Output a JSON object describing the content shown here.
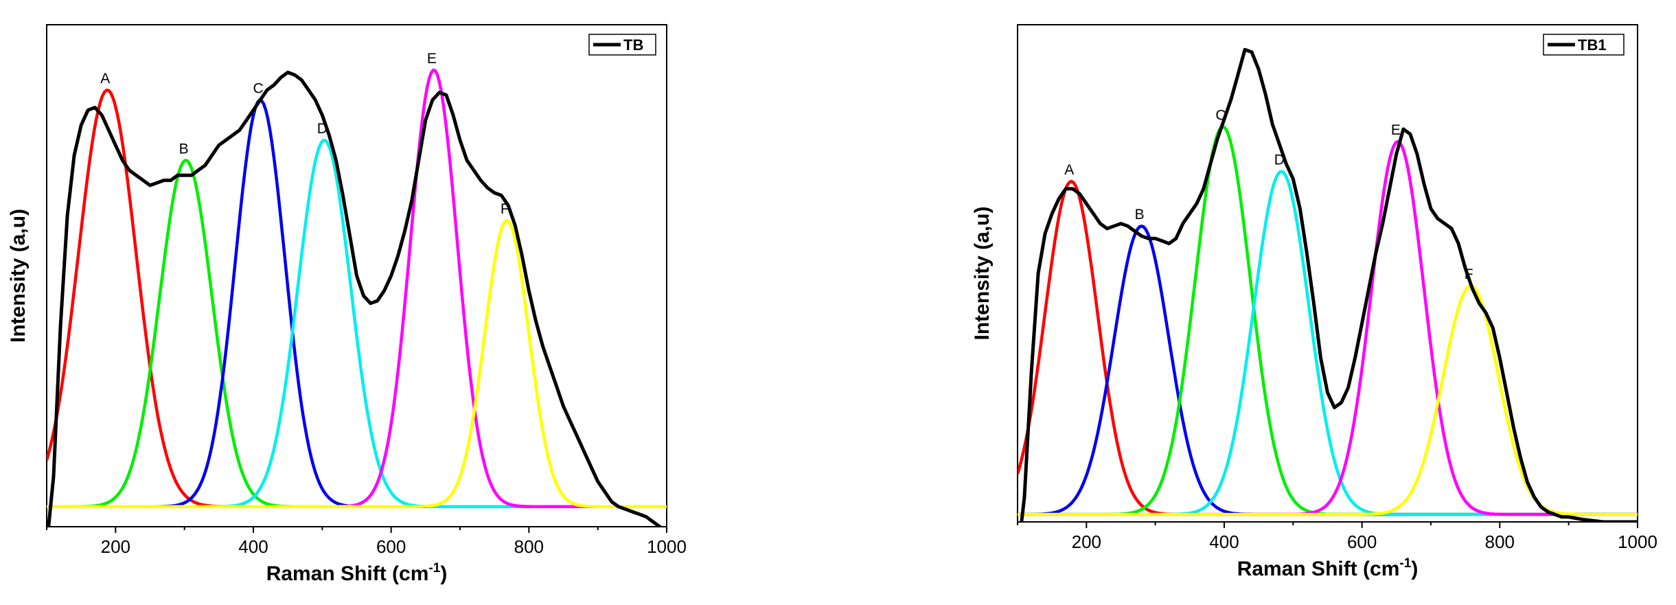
{
  "chart_data": [
    {
      "type": "line",
      "legend_label": "TB",
      "legend_position": "top-right",
      "xlabel": "Raman Shift (cm",
      "xlabel_sup": "-1",
      "xlabel_close": ")",
      "ylabel": "Intensity (a,u)",
      "xlim": [
        100,
        1000
      ],
      "ylim": [
        0,
        1.0
      ],
      "x_ticks": [
        200,
        400,
        600,
        800,
        1000
      ],
      "grid": false,
      "measured": {
        "name": "TB",
        "color": "#000000",
        "points": [
          [
            102,
            -0.01
          ],
          [
            110,
            0.1
          ],
          [
            120,
            0.4
          ],
          [
            130,
            0.62
          ],
          [
            140,
            0.74
          ],
          [
            150,
            0.8
          ],
          [
            160,
            0.83
          ],
          [
            170,
            0.835
          ],
          [
            180,
            0.82
          ],
          [
            190,
            0.79
          ],
          [
            200,
            0.76
          ],
          [
            210,
            0.73
          ],
          [
            220,
            0.71
          ],
          [
            230,
            0.7
          ],
          [
            240,
            0.69
          ],
          [
            250,
            0.68
          ],
          [
            260,
            0.685
          ],
          [
            270,
            0.69
          ],
          [
            280,
            0.69
          ],
          [
            290,
            0.7
          ],
          [
            300,
            0.7
          ],
          [
            310,
            0.7
          ],
          [
            320,
            0.71
          ],
          [
            330,
            0.72
          ],
          [
            340,
            0.74
          ],
          [
            350,
            0.76
          ],
          [
            360,
            0.77
          ],
          [
            370,
            0.78
          ],
          [
            380,
            0.79
          ],
          [
            390,
            0.81
          ],
          [
            400,
            0.83
          ],
          [
            410,
            0.85
          ],
          [
            420,
            0.87
          ],
          [
            430,
            0.88
          ],
          [
            440,
            0.895
          ],
          [
            450,
            0.905
          ],
          [
            460,
            0.9
          ],
          [
            470,
            0.89
          ],
          [
            480,
            0.87
          ],
          [
            490,
            0.85
          ],
          [
            500,
            0.82
          ],
          [
            510,
            0.78
          ],
          [
            520,
            0.73
          ],
          [
            530,
            0.66
          ],
          [
            540,
            0.58
          ],
          [
            550,
            0.5
          ],
          [
            560,
            0.46
          ],
          [
            570,
            0.445
          ],
          [
            580,
            0.45
          ],
          [
            590,
            0.47
          ],
          [
            600,
            0.5
          ],
          [
            610,
            0.54
          ],
          [
            620,
            0.59
          ],
          [
            630,
            0.65
          ],
          [
            640,
            0.73
          ],
          [
            650,
            0.81
          ],
          [
            660,
            0.85
          ],
          [
            670,
            0.865
          ],
          [
            680,
            0.86
          ],
          [
            690,
            0.82
          ],
          [
            700,
            0.77
          ],
          [
            710,
            0.73
          ],
          [
            720,
            0.71
          ],
          [
            730,
            0.69
          ],
          [
            740,
            0.675
          ],
          [
            750,
            0.665
          ],
          [
            760,
            0.66
          ],
          [
            770,
            0.64
          ],
          [
            780,
            0.6
          ],
          [
            790,
            0.54
          ],
          [
            800,
            0.47
          ],
          [
            810,
            0.41
          ],
          [
            820,
            0.36
          ],
          [
            830,
            0.32
          ],
          [
            840,
            0.28
          ],
          [
            850,
            0.24
          ],
          [
            860,
            0.21
          ],
          [
            870,
            0.18
          ],
          [
            880,
            0.15
          ],
          [
            890,
            0.12
          ],
          [
            900,
            0.09
          ],
          [
            910,
            0.07
          ],
          [
            920,
            0.05
          ],
          [
            930,
            0.04
          ],
          [
            940,
            0.035
          ],
          [
            950,
            0.03
          ],
          [
            960,
            0.025
          ],
          [
            970,
            0.02
          ],
          [
            980,
            0.01
          ],
          [
            990,
            0.0
          ],
          [
            1000,
            -0.01
          ]
        ]
      },
      "peaks": [
        {
          "name": "A",
          "center": 188,
          "height": 0.83,
          "sigma": 42,
          "color": "#ff0000"
        },
        {
          "name": "B",
          "center": 302,
          "height": 0.69,
          "sigma": 38,
          "color": "#00ee00"
        },
        {
          "name": "C",
          "center": 410,
          "height": 0.81,
          "sigma": 36,
          "color": "#0000ee"
        },
        {
          "name": "D",
          "center": 503,
          "height": 0.73,
          "sigma": 38,
          "color": "#00eeee"
        },
        {
          "name": "E",
          "center": 662,
          "height": 0.87,
          "sigma": 34,
          "color": "#ff00ff"
        },
        {
          "name": "F",
          "center": 768,
          "height": 0.57,
          "sigma": 32,
          "color": "#ffff00"
        }
      ]
    },
    {
      "type": "line",
      "legend_label": "TB1",
      "legend_position": "top-right",
      "xlabel": "Raman Shift (cm",
      "xlabel_sup": "-1",
      "xlabel_close": ")",
      "ylabel": "Intensity (a,u)",
      "xlim": [
        100,
        1000
      ],
      "ylim": [
        0,
        1.0
      ],
      "x_ticks": [
        200,
        400,
        600,
        800,
        1000
      ],
      "grid": false,
      "measured": {
        "name": "TB1",
        "color": "#000000",
        "points": [
          [
            105,
            -0.01
          ],
          [
            110,
            0.05
          ],
          [
            120,
            0.3
          ],
          [
            130,
            0.5
          ],
          [
            140,
            0.58
          ],
          [
            150,
            0.62
          ],
          [
            160,
            0.65
          ],
          [
            170,
            0.67
          ],
          [
            180,
            0.67
          ],
          [
            190,
            0.66
          ],
          [
            200,
            0.64
          ],
          [
            210,
            0.62
          ],
          [
            220,
            0.6
          ],
          [
            230,
            0.59
          ],
          [
            240,
            0.595
          ],
          [
            250,
            0.6
          ],
          [
            260,
            0.595
          ],
          [
            270,
            0.585
          ],
          [
            280,
            0.575
          ],
          [
            290,
            0.57
          ],
          [
            300,
            0.57
          ],
          [
            310,
            0.565
          ],
          [
            320,
            0.56
          ],
          [
            330,
            0.57
          ],
          [
            340,
            0.6
          ],
          [
            350,
            0.62
          ],
          [
            360,
            0.64
          ],
          [
            370,
            0.67
          ],
          [
            380,
            0.72
          ],
          [
            390,
            0.77
          ],
          [
            400,
            0.81
          ],
          [
            410,
            0.85
          ],
          [
            420,
            0.9
          ],
          [
            430,
            0.95
          ],
          [
            440,
            0.945
          ],
          [
            450,
            0.91
          ],
          [
            460,
            0.86
          ],
          [
            470,
            0.8
          ],
          [
            480,
            0.76
          ],
          [
            490,
            0.72
          ],
          [
            500,
            0.69
          ],
          [
            510,
            0.63
          ],
          [
            520,
            0.54
          ],
          [
            530,
            0.44
          ],
          [
            540,
            0.33
          ],
          [
            550,
            0.26
          ],
          [
            560,
            0.23
          ],
          [
            570,
            0.24
          ],
          [
            580,
            0.27
          ],
          [
            590,
            0.33
          ],
          [
            600,
            0.4
          ],
          [
            610,
            0.47
          ],
          [
            620,
            0.54
          ],
          [
            630,
            0.6
          ],
          [
            640,
            0.67
          ],
          [
            650,
            0.74
          ],
          [
            660,
            0.79
          ],
          [
            670,
            0.78
          ],
          [
            680,
            0.74
          ],
          [
            690,
            0.68
          ],
          [
            700,
            0.63
          ],
          [
            710,
            0.61
          ],
          [
            720,
            0.6
          ],
          [
            730,
            0.59
          ],
          [
            740,
            0.56
          ],
          [
            750,
            0.51
          ],
          [
            760,
            0.47
          ],
          [
            770,
            0.44
          ],
          [
            780,
            0.42
          ],
          [
            790,
            0.39
          ],
          [
            800,
            0.33
          ],
          [
            810,
            0.26
          ],
          [
            820,
            0.19
          ],
          [
            830,
            0.13
          ],
          [
            840,
            0.08
          ],
          [
            850,
            0.05
          ],
          [
            860,
            0.03
          ],
          [
            870,
            0.02
          ],
          [
            880,
            0.015
          ],
          [
            890,
            0.01
          ],
          [
            900,
            0.01
          ],
          [
            920,
            0.005
          ],
          [
            950,
            0.0
          ],
          [
            980,
            0.0
          ],
          [
            1000,
            0.0
          ]
        ]
      },
      "peaks": [
        {
          "name": "A",
          "center": 178,
          "height": 0.67,
          "sigma": 38,
          "color": "#ff0000"
        },
        {
          "name": "B",
          "center": 280,
          "height": 0.58,
          "sigma": 40,
          "color": "#0000ee"
        },
        {
          "name": "C",
          "center": 398,
          "height": 0.78,
          "sigma": 40,
          "color": "#00ee00"
        },
        {
          "name": "D",
          "center": 483,
          "height": 0.69,
          "sigma": 40,
          "color": "#00eeee"
        },
        {
          "name": "E",
          "center": 652,
          "height": 0.75,
          "sigma": 38,
          "color": "#ff00ff"
        },
        {
          "name": "F",
          "center": 758,
          "height": 0.46,
          "sigma": 40,
          "color": "#ffff00"
        }
      ]
    }
  ]
}
